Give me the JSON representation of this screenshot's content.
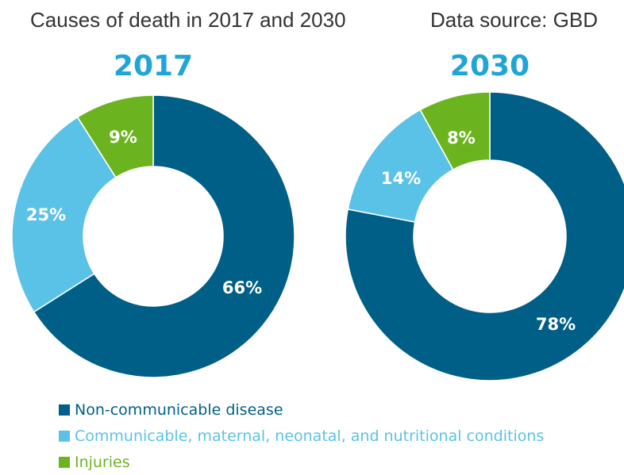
{
  "header": {
    "title": "Causes of death in 2017 and 2030",
    "source": "Data source: GBD"
  },
  "colors": {
    "non_communicable": "#005f87",
    "communicable": "#5bc2e7",
    "injuries": "#6cb41f",
    "year_label": "#1fa5d6"
  },
  "legend": [
    {
      "label": "Non-communicable disease",
      "color": "#005f87"
    },
    {
      "label": "Communicable, maternal, neonatal, and nutritional conditions",
      "color": "#5bc2e7"
    },
    {
      "label": "Injuries",
      "color": "#6cb41f"
    }
  ],
  "chart_data": [
    {
      "type": "pie",
      "title": "2017",
      "categories": [
        "Non-communicable disease",
        "Communicable, maternal, neonatal, and nutritional conditions",
        "Injuries"
      ],
      "values": [
        66,
        25,
        9
      ],
      "labels": [
        "66%",
        "25%",
        "9%"
      ]
    },
    {
      "type": "pie",
      "title": "2030",
      "categories": [
        "Non-communicable disease",
        "Communicable, maternal, neonatal, and nutritional conditions",
        "Injuries"
      ],
      "values": [
        78,
        14,
        8
      ],
      "labels": [
        "78%",
        "14%",
        "8%"
      ]
    }
  ]
}
